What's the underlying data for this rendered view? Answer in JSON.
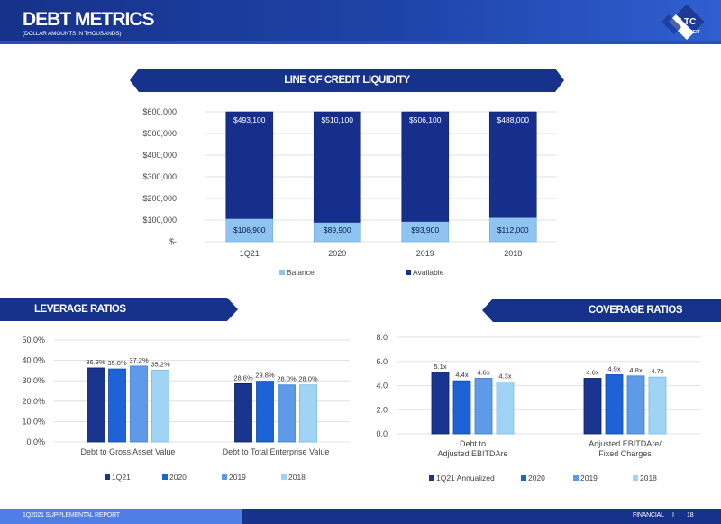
{
  "header": {
    "title": "DEBT METRICS",
    "subtitle": "(DOLLAR AMOUNTS IN THOUSANDS)",
    "logo_text": "LTC",
    "logo_sub": "REIT"
  },
  "footer": {
    "left": "1Q2021 SUPPLEMENTAL REPORT",
    "right": "FINANCIAL",
    "separator": "I",
    "page": "18"
  },
  "colors": {
    "navy": "#16328a",
    "q21": "#1a3590",
    "y2020": "#1d63d6",
    "y2019": "#5f9ae8",
    "y2018": "#9fd4f5",
    "balance": "#8fc3f0",
    "available": "#162f8c"
  },
  "chart_data": [
    {
      "type": "bar",
      "stacked": true,
      "title": "LINE OF CREDIT LIQUIDITY",
      "categories": [
        "1Q21",
        "2020",
        "2019",
        "2018"
      ],
      "series": [
        {
          "name": "Balance",
          "values": [
            106900,
            89900,
            93900,
            112000
          ],
          "labels": [
            "$106,900",
            "$89,900",
            "$93,900",
            "$112,000"
          ]
        },
        {
          "name": "Available",
          "values": [
            493100,
            510100,
            506100,
            488000
          ],
          "labels": [
            "$493,100",
            "$510,100",
            "$506,100",
            "$488,000"
          ]
        }
      ],
      "ylim": [
        0,
        600000
      ],
      "yticks": [
        0,
        100000,
        200000,
        300000,
        400000,
        500000,
        600000
      ],
      "ytick_labels": [
        "$-",
        "$100,000",
        "$200,000",
        "$300,000",
        "$400,000",
        "$500,000",
        "$600,000"
      ],
      "grid": true,
      "legend": "bottom"
    },
    {
      "type": "bar",
      "title": "LEVERAGE RATIOS",
      "categories": [
        "Debt to Gross Asset Value",
        "Debt to Total Enterprise Value"
      ],
      "series": [
        {
          "name": "1Q21",
          "values": [
            36.3,
            28.6
          ],
          "labels": [
            "36.3%",
            "28.6%"
          ]
        },
        {
          "name": "2020",
          "values": [
            35.8,
            29.8
          ],
          "labels": [
            "35.8%",
            "29.8%"
          ]
        },
        {
          "name": "2019",
          "values": [
            37.2,
            28.0
          ],
          "labels": [
            "37.2%",
            "28.0%"
          ]
        },
        {
          "name": "2018",
          "values": [
            35.2,
            28.0
          ],
          "labels": [
            "35.2%",
            "28.0%"
          ]
        }
      ],
      "ylim": [
        0,
        50
      ],
      "yticks": [
        0,
        10,
        20,
        30,
        40,
        50
      ],
      "ytick_labels": [
        "0.0%",
        "10.0%",
        "20.0%",
        "30.0%",
        "40.0%",
        "50.0%"
      ],
      "grid": true,
      "legend": "bottom"
    },
    {
      "type": "bar",
      "title": "COVERAGE RATIOS",
      "categories": [
        [
          "Debt to",
          "Adjusted EBITDAre"
        ],
        [
          "Adjusted EBITDAre/",
          "Fixed Charges"
        ]
      ],
      "series": [
        {
          "name": "1Q21 Annualized",
          "values": [
            5.1,
            4.6
          ],
          "labels": [
            "5.1x",
            "4.6x"
          ]
        },
        {
          "name": "2020",
          "values": [
            4.4,
            4.9
          ],
          "labels": [
            "4.4x",
            "4.9x"
          ]
        },
        {
          "name": "2019",
          "values": [
            4.6,
            4.8
          ],
          "labels": [
            "4.6x",
            "4.8x"
          ]
        },
        {
          "name": "2018",
          "values": [
            4.3,
            4.7
          ],
          "labels": [
            "4.3x",
            "4.7x"
          ]
        }
      ],
      "ylim": [
        0,
        8
      ],
      "yticks": [
        0,
        2,
        4,
        6,
        8
      ],
      "ytick_labels": [
        "0.0",
        "2.0",
        "4.0",
        "6.0",
        "8.0"
      ],
      "grid": true,
      "legend": "bottom"
    }
  ]
}
